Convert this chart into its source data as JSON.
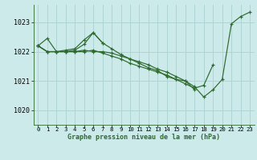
{
  "title": "Graphe pression niveau de la mer (hPa)",
  "background_color": "#cdeaea",
  "grid_color": "#aed4d4",
  "line_color": "#2d6a2d",
  "xlim": [
    -0.5,
    23.5
  ],
  "ylim": [
    1019.5,
    1023.6
  ],
  "yticks": [
    1020,
    1021,
    1022,
    1023
  ],
  "xticks": [
    0,
    1,
    2,
    3,
    4,
    5,
    6,
    7,
    8,
    9,
    10,
    11,
    12,
    13,
    14,
    15,
    16,
    17,
    18,
    19,
    20,
    21,
    22,
    23
  ],
  "series": [
    {
      "x": [
        0,
        1,
        2,
        3,
        4,
        5,
        6,
        7,
        8,
        9,
        10,
        11,
        12,
        13,
        14,
        15,
        16,
        17,
        18,
        19,
        20,
        21,
        22,
        23
      ],
      "y": [
        1022.2,
        1022.45,
        1022.0,
        1022.05,
        1022.1,
        1022.4,
        1022.65,
        1022.3,
        1022.1,
        1021.9,
        1021.75,
        1021.6,
        1021.45,
        1021.35,
        1021.15,
        1021.05,
        1021.0,
        1020.8,
        1020.45,
        1020.7,
        1021.05,
        1022.95,
        1023.2,
        1023.35
      ]
    },
    {
      "x": [
        0,
        1,
        2,
        3,
        4,
        5,
        6,
        7
      ],
      "y": [
        1022.2,
        1022.0,
        1022.0,
        1022.0,
        1022.05,
        1022.25,
        1022.65,
        1022.3
      ]
    },
    {
      "x": [
        0,
        1,
        2,
        3,
        4,
        5,
        6,
        7,
        8,
        9,
        10,
        11,
        12,
        13,
        14,
        15,
        16,
        17,
        18,
        19
      ],
      "y": [
        1022.2,
        1022.0,
        1022.0,
        1022.0,
        1022.0,
        1022.0,
        1022.05,
        1021.95,
        1021.85,
        1021.75,
        1021.6,
        1021.5,
        1021.4,
        1021.3,
        1021.2,
        1021.05,
        1020.9,
        1020.75,
        1020.85,
        1021.55
      ]
    },
    {
      "x": [
        0,
        1,
        2,
        3,
        4,
        5,
        6,
        7,
        8,
        9,
        10,
        11,
        12,
        13,
        14,
        15,
        16,
        17
      ],
      "y": [
        1022.2,
        1022.0,
        1022.0,
        1022.0,
        1022.0,
        1022.05,
        1022.0,
        1022.0,
        1021.95,
        1021.85,
        1021.75,
        1021.65,
        1021.55,
        1021.4,
        1021.3,
        1021.15,
        1021.0,
        1020.7
      ]
    }
  ]
}
